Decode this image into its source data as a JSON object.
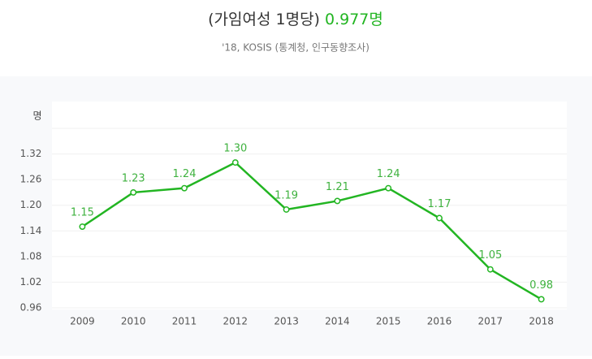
{
  "chart_data": {
    "type": "line",
    "title": "(가임여성 1명당)",
    "title_value": "0.977명",
    "subtitle": "'18, KOSIS (통계청, 인구동향조사)",
    "y_label": "명",
    "categories": [
      "2009",
      "2010",
      "2011",
      "2012",
      "2013",
      "2014",
      "2015",
      "2016",
      "2017",
      "2018"
    ],
    "values": [
      1.15,
      1.23,
      1.24,
      1.3,
      1.19,
      1.21,
      1.24,
      1.17,
      1.05,
      0.98
    ],
    "value_labels": [
      "1.15",
      "1.23",
      "1.24",
      "1.30",
      "1.19",
      "1.21",
      "1.24",
      "1.17",
      "1.05",
      "0.98"
    ],
    "color": "#22b522",
    "ylim": [
      0.96,
      1.38
    ],
    "yticks": [
      0.96,
      1.02,
      1.08,
      1.14,
      {
        "value": 1.2,
        "label": "1.20"
      },
      1.26,
      1.32
    ],
    "grid": true
  }
}
